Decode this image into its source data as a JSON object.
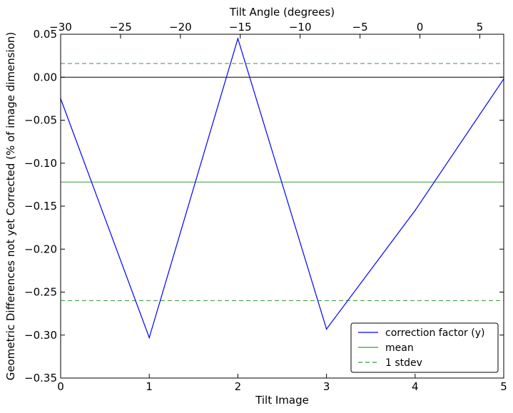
{
  "chart_data": {
    "type": "line",
    "xlabel": "Tilt Image",
    "ylabel": "Geometric Differences not yet Corrected (% of image dimension)",
    "top_xlabel": "Tilt Angle (degrees)",
    "xlim": [
      0,
      5
    ],
    "ylim": [
      -0.35,
      0.05
    ],
    "top_xlim": [
      -30,
      7
    ],
    "x_ticks": [
      0,
      1,
      2,
      3,
      4,
      5
    ],
    "x_tick_labels": [
      "0",
      "1",
      "2",
      "3",
      "4",
      "5"
    ],
    "y_ticks": [
      0.05,
      0.0,
      -0.05,
      -0.1,
      -0.15,
      -0.2,
      -0.25,
      -0.3,
      -0.35
    ],
    "y_tick_labels": [
      "0.05",
      "0.00",
      "−0.05",
      "−0.10",
      "−0.15",
      "−0.20",
      "−0.25",
      "−0.30",
      "−0.35"
    ],
    "top_x_ticks": [
      -30,
      -25,
      -20,
      -15,
      -10,
      -5,
      0,
      5
    ],
    "top_x_tick_labels": [
      "−30",
      "−25",
      "−20",
      "−15",
      "−10",
      "−5",
      "0",
      "5"
    ],
    "series": [
      {
        "name": "correction factor (y)",
        "color": "#0000ff",
        "x": [
          0,
          1,
          2,
          3,
          4,
          5
        ],
        "y": [
          -0.025,
          -0.303,
          0.045,
          -0.293,
          -0.155,
          -0.002
        ]
      }
    ],
    "reference_lines": [
      {
        "name": "zero",
        "value": 0.0,
        "color": "#000000",
        "style": "solid"
      },
      {
        "name": "mean",
        "value": -0.122,
        "color": "#3a9a3a",
        "style": "solid"
      },
      {
        "name": "1 stdev upper",
        "value": 0.016,
        "color": "#3a9a3a",
        "style": "dashed"
      },
      {
        "name": "1 stdev lower",
        "value": -0.26,
        "color": "#3a9a3a",
        "style": "dashed"
      }
    ],
    "legend": {
      "position": "lower-right",
      "entries": [
        {
          "label": "correction factor (y)",
          "color": "#0000ff",
          "style": "solid"
        },
        {
          "label": "mean",
          "color": "#3a9a3a",
          "style": "solid"
        },
        {
          "label": "1 stdev",
          "color": "#3a9a3a",
          "style": "dashed"
        }
      ]
    },
    "grid": false
  }
}
